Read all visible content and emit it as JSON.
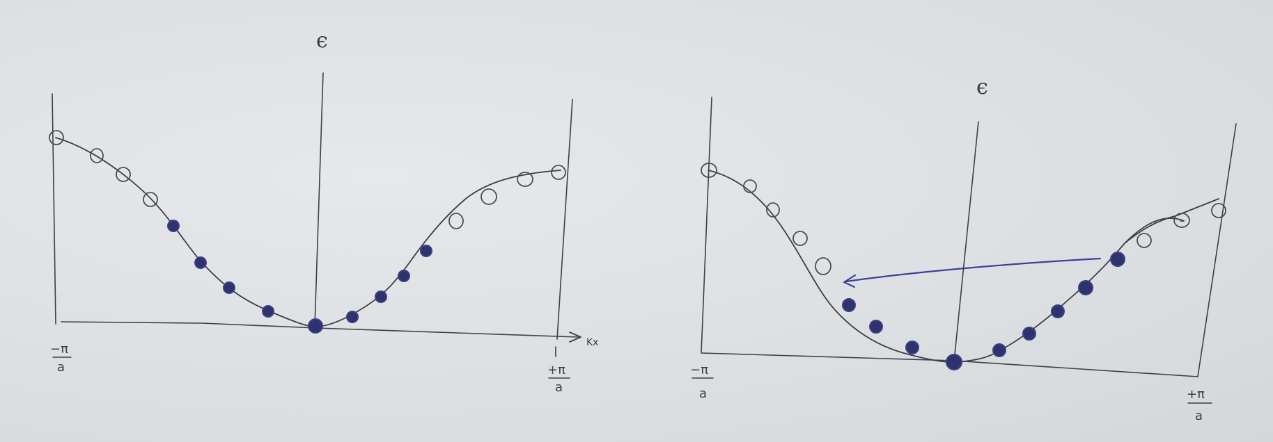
{
  "left_panel": {
    "energy_label": "ϵ",
    "kx_label": "Kx",
    "neg_pi_num": "−π",
    "neg_pi_den": "a",
    "pos_pi_num": "+π",
    "pos_pi_den": "a"
  },
  "right_panel": {
    "energy_label": "ϵ",
    "neg_pi_num": "−π",
    "neg_pi_den": "a",
    "pos_pi_num": "+π",
    "pos_pi_den": "a"
  },
  "colors": {
    "pencil": "#3c3f45",
    "filled_state": "#2e326e",
    "arrow": "#3b3f9a",
    "paper": "#dfe2e5"
  }
}
